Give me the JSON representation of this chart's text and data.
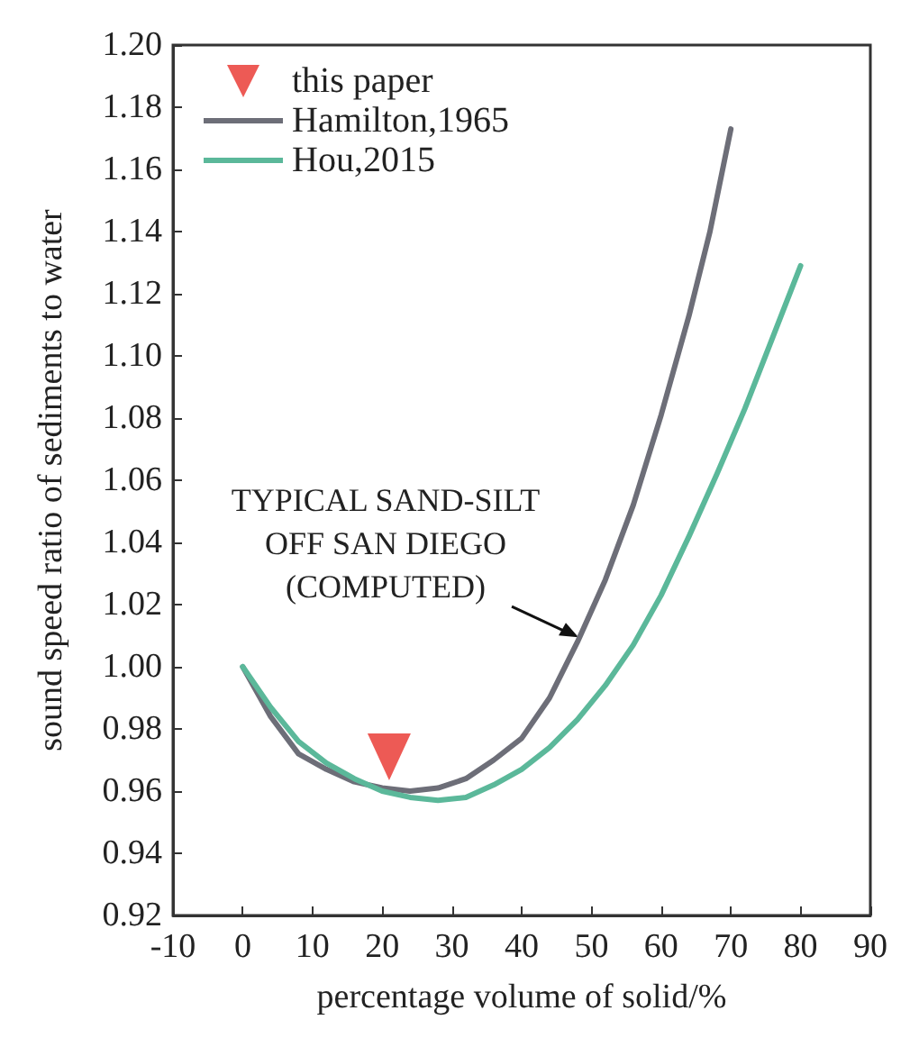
{
  "chart_data": {
    "type": "line",
    "xlabel": "percentage volume of solid/%",
    "ylabel": "sound speed ratio of sediments to water",
    "xlim": [
      -10,
      90
    ],
    "xticks": [
      -10,
      0,
      10,
      20,
      30,
      40,
      50,
      60,
      70,
      80,
      90
    ],
    "ylim": [
      0.92,
      1.2
    ],
    "yticks": [
      0.92,
      0.94,
      0.96,
      0.98,
      {
        "value": 1.0,
        "label": "1.00"
      },
      1.02,
      1.04,
      1.06,
      1.08,
      {
        "value": 1.1,
        "label": "1.10"
      },
      1.12,
      1.14,
      1.16,
      1.18,
      {
        "value": 1.2,
        "label": "1.20"
      }
    ],
    "grid": false,
    "legend": "top left",
    "line_style": "solid",
    "series": [
      {
        "name": "this paper",
        "type": "scatter",
        "marker": "triangle",
        "color": "#e8312a",
        "x": [
          21
        ],
        "values": [
          0.971
        ]
      },
      {
        "name": "Hamilton,1965",
        "color": "#6d6e78",
        "marker": "none",
        "x": [
          0,
          4,
          8,
          12,
          16,
          20,
          24,
          28,
          32,
          36,
          40,
          44,
          48,
          52,
          56,
          60,
          64,
          67,
          70
        ],
        "values": [
          1.0,
          0.984,
          0.972,
          0.967,
          0.963,
          0.961,
          0.96,
          0.961,
          0.964,
          0.97,
          0.977,
          0.99,
          1.008,
          1.028,
          1.052,
          1.081,
          1.113,
          1.14,
          1.173
        ]
      },
      {
        "name": "Hou,2015",
        "color": "#5bb89a",
        "marker": "none",
        "x": [
          0,
          4,
          8,
          12,
          16,
          20,
          24,
          28,
          32,
          36,
          40,
          44,
          48,
          52,
          56,
          60,
          64,
          68,
          72,
          76,
          80
        ],
        "values": [
          1.0,
          0.987,
          0.976,
          0.969,
          0.964,
          0.96,
          0.958,
          0.957,
          0.958,
          0.962,
          0.967,
          0.974,
          0.983,
          0.994,
          1.007,
          1.023,
          1.042,
          1.062,
          1.083,
          1.106,
          1.129
        ]
      }
    ],
    "annotations": [
      {
        "text": "TYPICAL SAND-SILT\nOFF SAN DIEGO\n(COMPUTED)",
        "x": 48.4,
        "y": 1.0095
      }
    ]
  }
}
